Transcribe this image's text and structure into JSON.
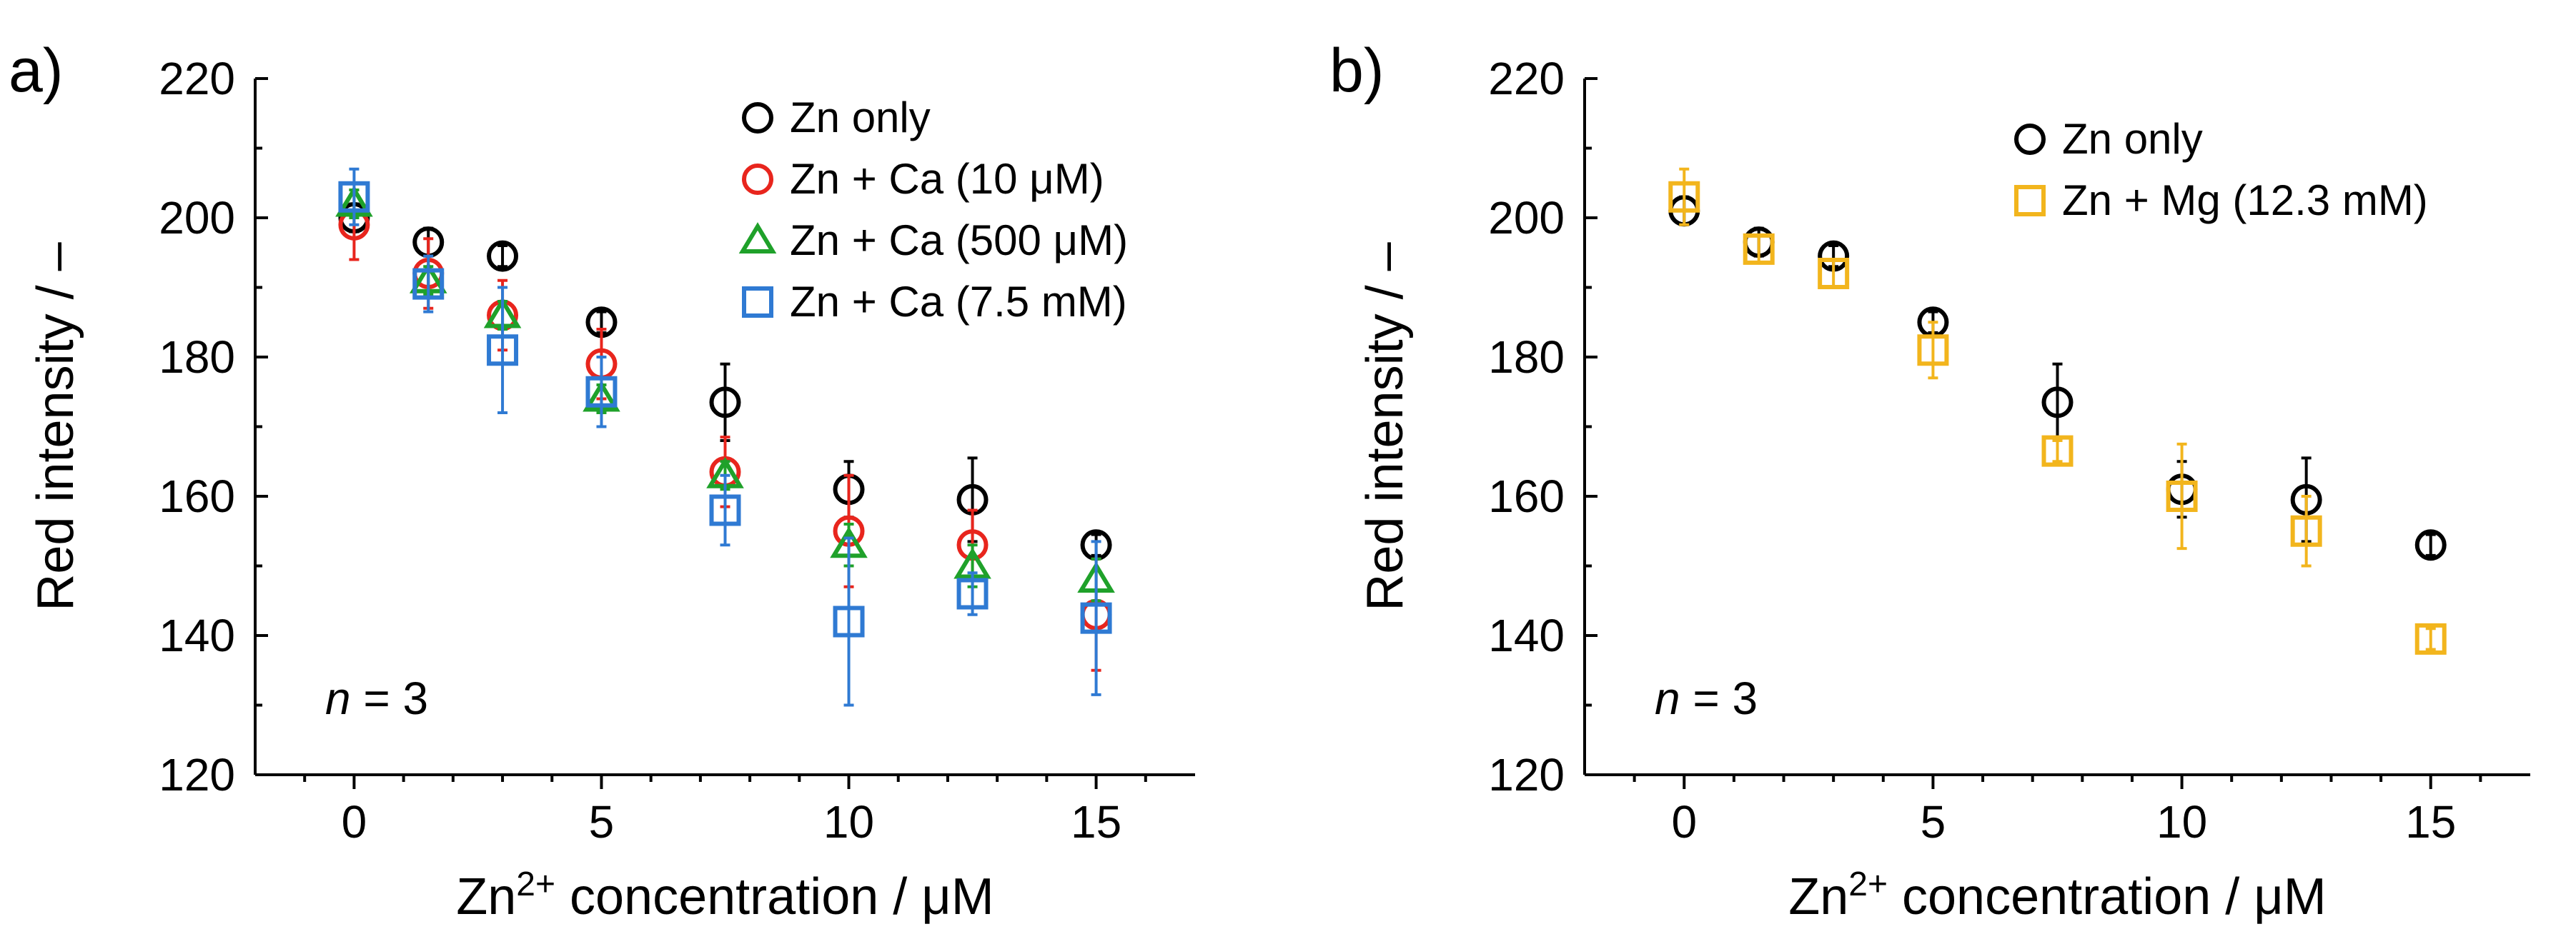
{
  "chart_data": [
    {
      "panel_label": "a)",
      "type": "scatter",
      "xlabel_pre": "Zn",
      "xlabel_sup": "2+",
      "xlabel_post": " concentration / μM",
      "ylabel": "Red intensity / –",
      "xlim": [
        -2,
        17
      ],
      "ylim": [
        120,
        220
      ],
      "xticks": [
        0,
        5,
        10,
        15
      ],
      "yticks": [
        120,
        140,
        160,
        180,
        200,
        220
      ],
      "annotation_italic": "n",
      "annotation_rest": " = 3",
      "legend_position": "top-right",
      "series": [
        {
          "name": "Zn only",
          "marker": "circle",
          "color": "#000000",
          "x": [
            0,
            1.5,
            3,
            5,
            7.5,
            10,
            12.5,
            15
          ],
          "y": [
            200,
            196.5,
            194.5,
            185,
            173.5,
            161,
            159.5,
            153
          ],
          "err": [
            2,
            2,
            1.5,
            1.5,
            5.5,
            4,
            6,
            1.5
          ]
        },
        {
          "name": "Zn + Ca (10 μM)",
          "marker": "circle",
          "color": "#e8251d",
          "x": [
            0,
            1.5,
            3,
            5,
            7.5,
            10,
            12.5,
            15
          ],
          "y": [
            199,
            192,
            186,
            179,
            163.5,
            155,
            153,
            143
          ],
          "err": [
            5,
            5,
            5,
            5,
            5,
            8,
            5,
            8
          ]
        },
        {
          "name": "Zn + Ca (500 μM)",
          "marker": "triangle",
          "color": "#1fa12a",
          "x": [
            0,
            1.5,
            3,
            5,
            7.5,
            10,
            12.5,
            15
          ],
          "y": [
            202,
            191,
            186,
            174,
            163,
            153,
            150,
            148
          ],
          "err": [
            2,
            2,
            2,
            2,
            2,
            3,
            3,
            3
          ]
        },
        {
          "name": "Zn + Ca (7.5 mM)",
          "marker": "square",
          "color": "#2f7ad3",
          "x": [
            0,
            1.5,
            3,
            5,
            7.5,
            10,
            12.5,
            15
          ],
          "y": [
            203,
            190.5,
            181,
            175,
            158,
            142,
            146,
            142.5
          ],
          "err": [
            4,
            4,
            9,
            5,
            5,
            12,
            3,
            11
          ]
        }
      ]
    },
    {
      "panel_label": "b)",
      "type": "scatter",
      "xlabel_pre": "Zn",
      "xlabel_sup": "2+",
      "xlabel_post": " concentration / μM",
      "ylabel": "Red intensity / –",
      "xlim": [
        -2,
        17
      ],
      "ylim": [
        120,
        220
      ],
      "xticks": [
        0,
        5,
        10,
        15
      ],
      "yticks": [
        120,
        140,
        160,
        180,
        200,
        220
      ],
      "annotation_italic": "n",
      "annotation_rest": " = 3",
      "legend_position": "top-right",
      "series": [
        {
          "name": "Zn only",
          "marker": "circle",
          "color": "#000000",
          "x": [
            0,
            1.5,
            3,
            5,
            7.5,
            10,
            12.5,
            15
          ],
          "y": [
            201,
            196.5,
            194.5,
            185,
            173.5,
            161,
            159.5,
            153
          ],
          "err": [
            2,
            2,
            1.5,
            1.5,
            5.5,
            4,
            6,
            1.5
          ]
        },
        {
          "name": "Zn + Mg (12.3 mM)",
          "marker": "square",
          "color": "#f2b51d",
          "x": [
            0,
            1.5,
            3,
            5,
            7.5,
            10,
            12.5,
            15
          ],
          "y": [
            203,
            195.5,
            192,
            181,
            166.5,
            160,
            155,
            139.5
          ],
          "err": [
            4,
            2,
            2,
            4,
            1.5,
            7.5,
            5,
            1.5
          ]
        }
      ]
    }
  ]
}
